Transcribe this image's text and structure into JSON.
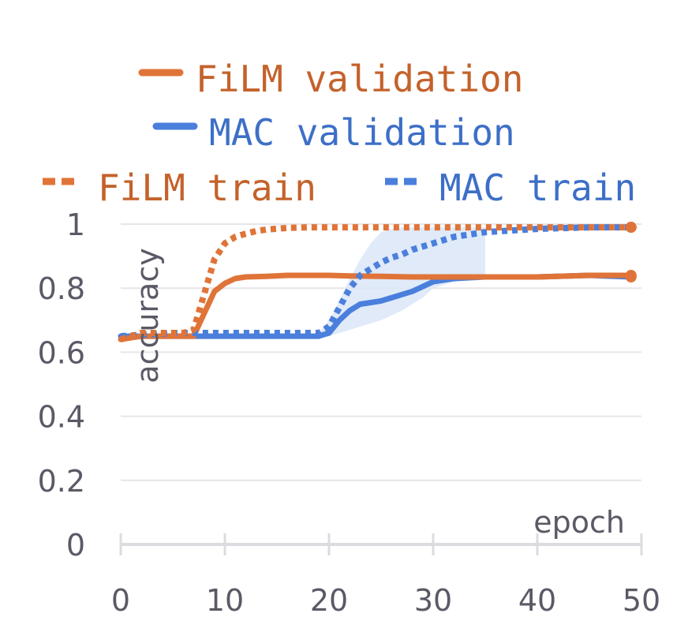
{
  "chart_data": {
    "type": "line",
    "xlabel": "epoch",
    "ylabel": "accuracy",
    "xlim": [
      0,
      50
    ],
    "ylim": [
      0,
      1
    ],
    "x_ticks": [
      "0",
      "10",
      "20",
      "30",
      "40",
      "50"
    ],
    "y_ticks": [
      "0",
      "0.2",
      "0.4",
      "0.6",
      "0.8",
      "1"
    ],
    "grid": true,
    "legend_position": "top",
    "colors": {
      "film": "#e07438",
      "mac": "#4a7fdc",
      "band": "#dbe6f8",
      "grid": "#e6e6ea",
      "axis": "#dcdce0",
      "legend_film": "#c4622b",
      "legend_mac": "#3d6fc7"
    },
    "series": [
      {
        "name": "FiLM validation",
        "style": "solid",
        "x": [
          0,
          2,
          4,
          6,
          7,
          8,
          9,
          10,
          11,
          12,
          14,
          16,
          18,
          20,
          22,
          25,
          28,
          30,
          35,
          40,
          45,
          49
        ],
        "y": [
          0.64,
          0.65,
          0.65,
          0.65,
          0.65,
          0.72,
          0.79,
          0.815,
          0.83,
          0.835,
          0.837,
          0.84,
          0.84,
          0.84,
          0.838,
          0.837,
          0.835,
          0.835,
          0.835,
          0.835,
          0.84,
          0.84
        ]
      },
      {
        "name": "MAC validation",
        "style": "solid",
        "x": [
          0,
          5,
          10,
          15,
          19,
          20,
          21,
          22,
          23,
          24,
          25,
          26,
          27,
          28,
          29,
          30,
          32,
          35,
          40,
          45,
          49
        ],
        "y": [
          0.65,
          0.65,
          0.65,
          0.65,
          0.65,
          0.66,
          0.7,
          0.73,
          0.75,
          0.755,
          0.76,
          0.77,
          0.78,
          0.79,
          0.805,
          0.82,
          0.83,
          0.835,
          0.835,
          0.84,
          0.835
        ]
      },
      {
        "name": "FiLM train",
        "style": "dashed",
        "x": [
          0,
          2,
          4,
          6,
          7,
          8,
          9,
          10,
          11,
          12,
          13,
          14,
          16,
          18,
          20,
          25,
          30,
          35,
          40,
          45,
          49
        ],
        "y": [
          0.64,
          0.66,
          0.66,
          0.66,
          0.67,
          0.78,
          0.89,
          0.94,
          0.96,
          0.97,
          0.978,
          0.983,
          0.988,
          0.99,
          0.99,
          0.99,
          0.99,
          0.99,
          0.99,
          0.99,
          0.99
        ]
      },
      {
        "name": "MAC train",
        "style": "dashed",
        "x": [
          0,
          5,
          10,
          15,
          19,
          20,
          21,
          22,
          23,
          24,
          25,
          26,
          27,
          28,
          30,
          32,
          35,
          40,
          45,
          49
        ],
        "y": [
          0.65,
          0.66,
          0.66,
          0.66,
          0.66,
          0.68,
          0.74,
          0.8,
          0.84,
          0.86,
          0.88,
          0.895,
          0.905,
          0.92,
          0.94,
          0.96,
          0.975,
          0.985,
          0.99,
          0.99
        ]
      }
    ],
    "mac_band": {
      "x": [
        19,
        20,
        21,
        22,
        23,
        24,
        25,
        26,
        27,
        28,
        29,
        30,
        32,
        35
      ],
      "low": [
        0.65,
        0.65,
        0.66,
        0.67,
        0.68,
        0.69,
        0.7,
        0.715,
        0.73,
        0.75,
        0.77,
        0.8,
        0.82,
        0.83
      ],
      "high": [
        0.66,
        0.7,
        0.76,
        0.83,
        0.89,
        0.94,
        0.975,
        0.985,
        0.99,
        0.99,
        0.99,
        0.99,
        0.99,
        0.99
      ]
    }
  }
}
